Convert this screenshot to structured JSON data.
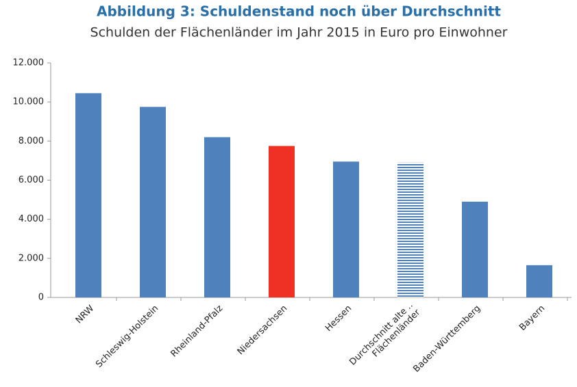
{
  "chart_data": {
    "type": "bar",
    "title": "Abbildung 3: Schuldenstand noch über Durchschnitt",
    "subtitle": "Schulden der Flächenländer im Jahr 2015 in Euro pro Einwohner",
    "categories": [
      "NRW",
      "Schleswig-Holstein",
      "Rheinland-Pfalz",
      "Niedersachsen",
      "Hessen",
      "Durchschnitt alte ..\nFlächenländer",
      "Baden-Württemberg",
      "Bayern"
    ],
    "values": [
      10450,
      9750,
      8200,
      7750,
      6950,
      6900,
      4900,
      1650
    ],
    "colors": [
      "#4f81bd",
      "#4f81bd",
      "#4f81bd",
      "#ee3124",
      "#4f81bd",
      "#4f81bd",
      "#4f81bd",
      "#4f81bd"
    ],
    "fills": [
      "solid",
      "solid",
      "solid",
      "solid",
      "solid",
      "striped",
      "solid",
      "solid"
    ],
    "ylim": [
      0,
      12000
    ],
    "yticks": [
      0,
      {
        "value": 2000,
        "label": "2.000"
      },
      {
        "value": 4000,
        "label": "4.000"
      },
      {
        "value": 6000,
        "label": "6.000"
      },
      {
        "value": 8000,
        "label": "8.000"
      },
      {
        "value": 10000,
        "label": "10.000"
      },
      {
        "value": 12000,
        "label": "12.000"
      }
    ],
    "grid": false
  }
}
